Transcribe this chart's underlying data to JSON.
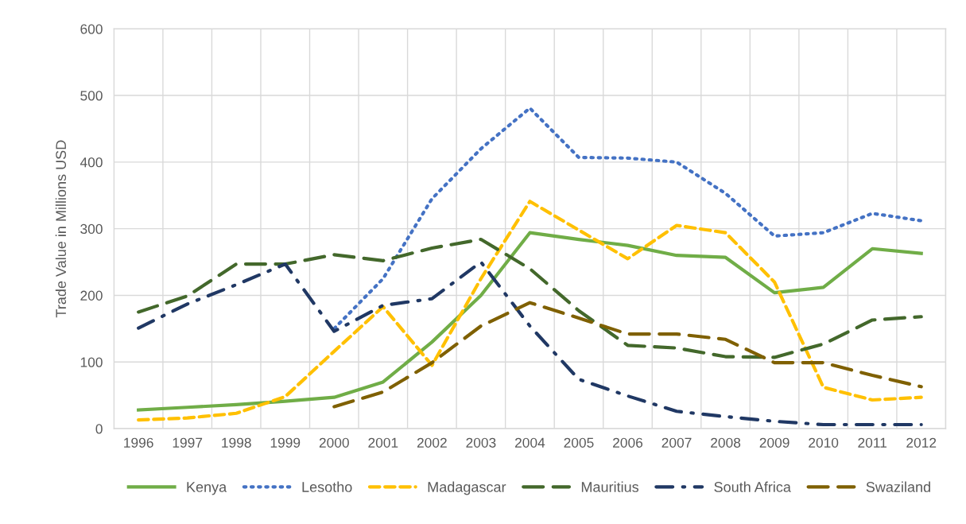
{
  "chart_data": {
    "type": "line",
    "ylabel": "Trade Value in Millions USD",
    "categories": [
      "1996",
      "1997",
      "1998",
      "1999",
      "2000",
      "2001",
      "2002",
      "2003",
      "2004",
      "2005",
      "2006",
      "2007",
      "2008",
      "2009",
      "2010",
      "2011",
      "2012"
    ],
    "series": [
      {
        "name": "Kenya",
        "color": "#70ad47",
        "line_style": "solid",
        "values": [
          28,
          32,
          36,
          41,
          47,
          70,
          130,
          200,
          294,
          284,
          275,
          260,
          257,
          204,
          212,
          270,
          263
        ]
      },
      {
        "name": "Lesotho",
        "color": "#4472c4",
        "line_style": "dotted",
        "values": [
          null,
          null,
          null,
          null,
          150,
          225,
          345,
          420,
          481,
          407,
          406,
          400,
          353,
          289,
          294,
          323,
          312
        ]
      },
      {
        "name": "Madagascar",
        "color": "#ffc000",
        "line_style": "dashed",
        "values": [
          13,
          16,
          23,
          48,
          116,
          183,
          95,
          225,
          341,
          298,
          255,
          305,
          294,
          220,
          62,
          43,
          47
        ]
      },
      {
        "name": "Mauritius",
        "color": "#43682b",
        "line_style": "longdash",
        "values": [
          175,
          199,
          247,
          247,
          261,
          252,
          271,
          284,
          240,
          177,
          125,
          121,
          108,
          107,
          127,
          163,
          168
        ]
      },
      {
        "name": "South Africa",
        "color": "#203864",
        "line_style": "dashdot",
        "values": [
          151,
          187,
          216,
          247,
          146,
          185,
          195,
          250,
          154,
          74,
          49,
          26,
          18,
          11,
          6,
          6,
          6
        ]
      },
      {
        "name": "Swaziland",
        "color": "#7f6000",
        "line_style": "longdash",
        "values": [
          null,
          null,
          null,
          null,
          33,
          55,
          99,
          154,
          189,
          166,
          142,
          142,
          134,
          99,
          99,
          80,
          63
        ]
      }
    ],
    "ylim": [
      0,
      600
    ],
    "yticks": [
      0,
      100,
      200,
      300,
      400,
      500,
      600
    ],
    "grid": true,
    "legend": "bottom",
    "marker": "none"
  }
}
